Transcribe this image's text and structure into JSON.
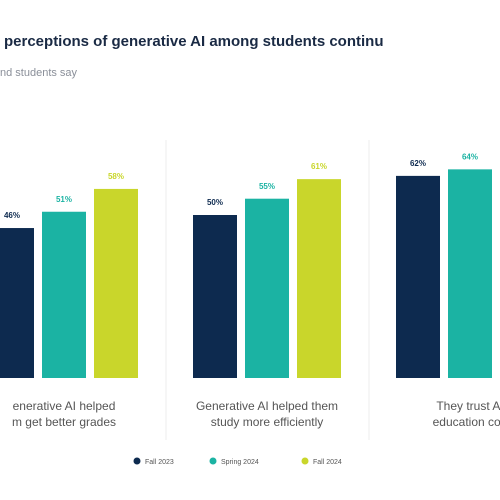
{
  "chart_data": {
    "type": "bar",
    "title": "perceptions of generative AI among students continu",
    "subtitle": "nd students say",
    "categories": [
      [
        "enerative AI helped",
        "m get better grades"
      ],
      [
        "Generative AI helped them",
        "study more efficiently"
      ],
      [
        "They trust AI",
        "education con"
      ]
    ],
    "series": [
      {
        "name": "Fall 2023",
        "color": "#0d2a4f",
        "values": [
          46,
          50,
          62
        ],
        "value_labels": [
          "46%",
          "50%",
          "62%"
        ]
      },
      {
        "name": "Spring 2024",
        "color": "#1bb3a3",
        "values": [
          51,
          55,
          64
        ],
        "value_labels": [
          "51%",
          "55%",
          "64%"
        ]
      },
      {
        "name": "Fall 2024",
        "color": "#c9d62b",
        "values": [
          58,
          61,
          null
        ],
        "value_labels": [
          "58%",
          "61%",
          null
        ]
      }
    ]
  }
}
